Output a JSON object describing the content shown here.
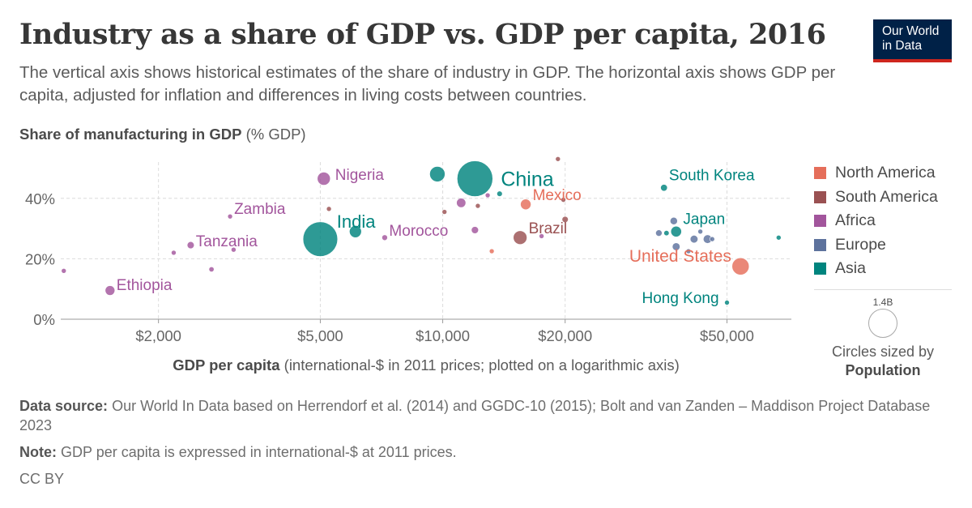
{
  "header": {
    "title": "Industry as a share of GDP vs. GDP per capita, 2016",
    "subtitle": "The vertical axis shows historical estimates of the share of industry in GDP. The horizontal axis shows GDP per capita, adjusted for inflation and differences in living costs between countries.",
    "logo_line1": "Our World",
    "logo_line2": "in Data"
  },
  "axes": {
    "y_title_bold": "Share of manufacturing in GDP",
    "y_title_unit": "(% GDP)",
    "x_title_bold": "GDP per capita",
    "x_title_unit": "(international-$ in 2011 prices; plotted on a logarithmic axis)"
  },
  "legend": {
    "items": [
      {
        "label": "North America",
        "color": "#e56e5a"
      },
      {
        "label": "South America",
        "color": "#9a5152"
      },
      {
        "label": "Africa",
        "color": "#a2559c"
      },
      {
        "label": "Europe",
        "color": "#5d729d"
      },
      {
        "label": "Asia",
        "color": "#00847e"
      }
    ],
    "size_value": "1.4B",
    "size_text": "Circles sized by",
    "size_variable": "Population"
  },
  "footer": {
    "source_label": "Data source:",
    "source_text": "Our World In Data based on Herrendorf et al. (2014) and GGDC-10 (2015); Bolt and van Zanden – Maddison Project Database 2023",
    "note_label": "Note:",
    "note_text": "GDP per capita is expressed in international-$ at 2011 prices.",
    "license": "CC BY"
  },
  "chart_data": {
    "type": "scatter",
    "x_scale": "log",
    "xlim": [
      1150,
      72000
    ],
    "ylim": [
      0,
      52
    ],
    "x_ticks": [
      2000,
      5000,
      10000,
      20000,
      50000
    ],
    "x_tick_labels": [
      "$2,000",
      "$5,000",
      "$10,000",
      "$20,000",
      "$50,000"
    ],
    "y_ticks": [
      0,
      20,
      40
    ],
    "y_tick_labels": [
      "0%",
      "20%",
      "40%"
    ],
    "grid": true,
    "legend_position": "right",
    "size_variable": "Population",
    "points": [
      {
        "label": "China",
        "region": "Asia",
        "x": 12000,
        "y": 46.5,
        "population": 1400000000
      },
      {
        "label": "India",
        "region": "Asia",
        "x": 5000,
        "y": 26.5,
        "population": 1320000000
      },
      {
        "label": "Nigeria",
        "region": "Africa",
        "x": 5100,
        "y": 46.5,
        "population": 186000000
      },
      {
        "label": "Mexico",
        "region": "North America",
        "x": 16000,
        "y": 38,
        "population": 123000000
      },
      {
        "label": "Brazil",
        "region": "South America",
        "x": 15500,
        "y": 27,
        "population": 206000000
      },
      {
        "label": "South Korea",
        "region": "Asia",
        "x": 35000,
        "y": 43.5,
        "population": 51000000
      },
      {
        "label": "Japan",
        "region": "Asia",
        "x": 37500,
        "y": 29,
        "population": 127000000
      },
      {
        "label": "United States",
        "region": "North America",
        "x": 54000,
        "y": 17.5,
        "population": 323000000
      },
      {
        "label": "Hong Kong",
        "region": "Asia",
        "x": 50000,
        "y": 5.5,
        "population": 7300000
      },
      {
        "label": "Morocco",
        "region": "Africa",
        "x": 7200,
        "y": 27,
        "population": 35000000
      },
      {
        "label": "Zambia",
        "region": "Africa",
        "x": 3000,
        "y": 34,
        "population": 16600000
      },
      {
        "label": "Tanzania",
        "region": "Africa",
        "x": 2400,
        "y": 24.5,
        "population": 55000000
      },
      {
        "label": "Ethiopia",
        "region": "Africa",
        "x": 1520,
        "y": 9.5,
        "population": 103000000
      },
      {
        "label": "",
        "region": "Asia",
        "x": 9700,
        "y": 48,
        "population": 260000000
      },
      {
        "label": "",
        "region": "Asia",
        "x": 6100,
        "y": 29,
        "population": 160000000
      },
      {
        "label": "",
        "region": "Asia",
        "x": 13800,
        "y": 41.5,
        "population": 33000000
      },
      {
        "label": "",
        "region": "Asia",
        "x": 35500,
        "y": 28.5,
        "population": 31000000
      },
      {
        "label": "",
        "region": "Asia",
        "x": 67000,
        "y": 27,
        "population": 5600000
      },
      {
        "label": "",
        "region": "Africa",
        "x": 11100,
        "y": 38.5,
        "population": 95000000
      },
      {
        "label": "",
        "region": "Africa",
        "x": 12000,
        "y": 29.5,
        "population": 56000000
      },
      {
        "label": "",
        "region": "Africa",
        "x": 12900,
        "y": 41,
        "population": 5000000
      },
      {
        "label": "",
        "region": "Africa",
        "x": 17500,
        "y": 27.5,
        "population": 4000000
      },
      {
        "label": "",
        "region": "Africa",
        "x": 1170,
        "y": 16,
        "population": 20000000
      },
      {
        "label": "",
        "region": "Africa",
        "x": 2180,
        "y": 22,
        "population": 25000000
      },
      {
        "label": "",
        "region": "Africa",
        "x": 2700,
        "y": 16.5,
        "population": 29000000
      },
      {
        "label": "",
        "region": "Africa",
        "x": 3060,
        "y": 23,
        "population": 3000000
      },
      {
        "label": "",
        "region": "South America",
        "x": 10100,
        "y": 35.5,
        "population": 8000000
      },
      {
        "label": "",
        "region": "South America",
        "x": 12200,
        "y": 37.5,
        "population": 11000000
      },
      {
        "label": "",
        "region": "South America",
        "x": 19200,
        "y": 53,
        "population": 2000000
      },
      {
        "label": "",
        "region": "South America",
        "x": 20000,
        "y": 33,
        "population": 43000000
      },
      {
        "label": "",
        "region": "South America",
        "x": 19800,
        "y": 39.5,
        "population": 18000000
      },
      {
        "label": "",
        "region": "South America",
        "x": 5250,
        "y": 36.5,
        "population": 9000000
      },
      {
        "label": "",
        "region": "North America",
        "x": 13200,
        "y": 22.5,
        "population": 4900000
      },
      {
        "label": "",
        "region": "Europe",
        "x": 34000,
        "y": 28.5,
        "population": 46000000
      },
      {
        "label": "",
        "region": "Europe",
        "x": 37000,
        "y": 32.5,
        "population": 60000000
      },
      {
        "label": "",
        "region": "Europe",
        "x": 37500,
        "y": 24,
        "population": 66000000
      },
      {
        "label": "",
        "region": "Europe",
        "x": 41500,
        "y": 26.5,
        "population": 66000000
      },
      {
        "label": "",
        "region": "Europe",
        "x": 43000,
        "y": 29,
        "population": 5700000
      },
      {
        "label": "",
        "region": "Europe",
        "x": 44800,
        "y": 26.5,
        "population": 82000000
      },
      {
        "label": "",
        "region": "Europe",
        "x": 46000,
        "y": 26.5,
        "population": 17000000
      },
      {
        "label": "",
        "region": "Europe",
        "x": 40200,
        "y": 22.5,
        "population": 10000000
      }
    ]
  }
}
